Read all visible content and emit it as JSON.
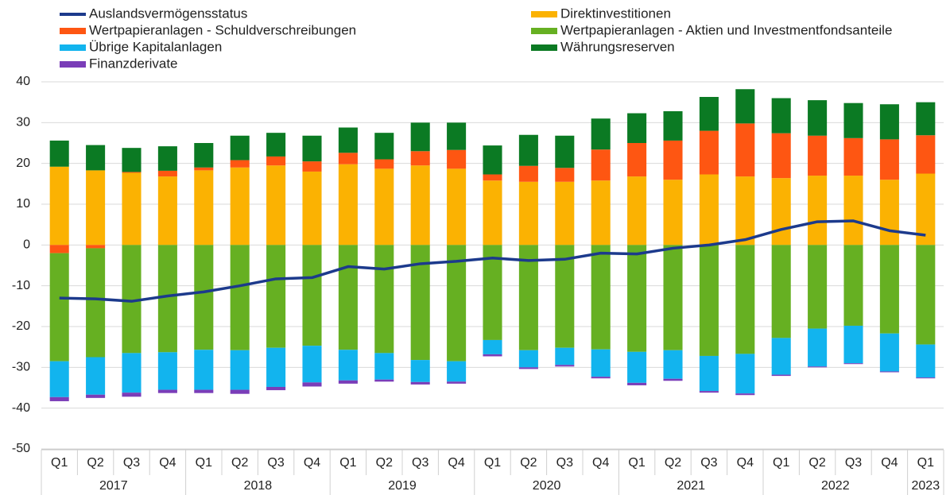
{
  "chart_data": {
    "type": "bar",
    "stacked": true,
    "categories": [
      "Q1",
      "Q2",
      "Q3",
      "Q4",
      "Q1",
      "Q2",
      "Q3",
      "Q4",
      "Q1",
      "Q2",
      "Q3",
      "Q4",
      "Q1",
      "Q2",
      "Q3",
      "Q4",
      "Q1",
      "Q2",
      "Q3",
      "Q4",
      "Q1",
      "Q2",
      "Q3",
      "Q4",
      "Q1"
    ],
    "years": [
      "2017",
      "2018",
      "2019",
      "2020",
      "2021",
      "2022",
      "2023"
    ],
    "ylim": [
      -50,
      40
    ],
    "yticks": [
      -50,
      -40,
      -30,
      -20,
      -10,
      0,
      10,
      20,
      30,
      40
    ],
    "grid": true,
    "series": [
      {
        "name": "Auslandsvermögensstatus",
        "type": "line",
        "color": "#1c3a8c",
        "values": [
          -13,
          -13.2,
          -13.8,
          -12.5,
          -11.5,
          -10,
          -8.3,
          -8,
          -5.3,
          -5.9,
          -4.6,
          -4,
          -3.2,
          -3.8,
          -3.5,
          -2,
          -2.2,
          -0.8,
          0,
          1.3,
          3.8,
          5.7,
          5.9,
          3.5,
          2.4
        ]
      },
      {
        "name": "Direktinvestitionen",
        "color": "#fbb202",
        "values": [
          19.2,
          18.3,
          17.7,
          16.8,
          18.3,
          19,
          19.5,
          18,
          19.8,
          18.7,
          19.5,
          18.7,
          15.8,
          15.5,
          15.5,
          15.8,
          16.8,
          16,
          17.3,
          16.8,
          16.4,
          17,
          17,
          16,
          17.5
        ]
      },
      {
        "name": "Wertpapieranlagen - Schuldverschreibungen",
        "color": "#fe5612",
        "values": [
          -2,
          -0.8,
          0.2,
          1.4,
          0.7,
          1.8,
          2.2,
          2.5,
          2.8,
          2.3,
          3.5,
          4.6,
          1.5,
          3.9,
          3.4,
          7.6,
          8.2,
          9.6,
          10.7,
          13,
          11,
          9.8,
          9.2,
          9.9,
          9.4
        ]
      },
      {
        "name": "Wertpapieranlagen - Aktien und Investmentfondsanteile",
        "color": "#66b022",
        "values": [
          -26.5,
          -26.7,
          -26.5,
          -26.3,
          -25.7,
          -25.8,
          -25.2,
          -24.7,
          -25.7,
          -26.5,
          -28.2,
          -28.5,
          -23.3,
          -25.8,
          -25.2,
          -25.6,
          -26.2,
          -25.8,
          -27.2,
          -26.7,
          -22.8,
          -20.5,
          -19.8,
          -21.7,
          -24.4
        ]
      },
      {
        "name": "Übrige Kapitalanlagen",
        "color": "#12b4ee",
        "values": [
          -8.8,
          -9.2,
          -9.7,
          -9.2,
          -9.8,
          -9.7,
          -9.6,
          -9,
          -7.5,
          -6.5,
          -5.4,
          -5,
          -3.5,
          -4.2,
          -4.2,
          -6.7,
          -7.6,
          -7,
          -8.6,
          -9.7,
          -9,
          -9.3,
          -9.2,
          -9.3,
          -8.1
        ]
      },
      {
        "name": "Finanzderivate",
        "color": "#7a3db8",
        "values": [
          -1,
          -0.8,
          -1,
          -0.8,
          -0.8,
          -1,
          -0.8,
          -1,
          -0.8,
          -0.5,
          -0.6,
          -0.5,
          -0.5,
          -0.4,
          -0.4,
          -0.4,
          -0.6,
          -0.5,
          -0.4,
          -0.4,
          -0.3,
          -0.2,
          -0.2,
          -0.2,
          -0.2
        ]
      },
      {
        "name": "Währungsreserven",
        "color": "#0b7a23",
        "values": [
          6.4,
          6.2,
          5.9,
          6,
          6,
          6,
          5.8,
          6.3,
          6.2,
          6.5,
          7,
          6.7,
          7.1,
          7.6,
          7.9,
          7.6,
          7.3,
          7.2,
          8.3,
          8.4,
          8.6,
          8.7,
          8.6,
          8.6,
          8.1
        ]
      }
    ]
  }
}
